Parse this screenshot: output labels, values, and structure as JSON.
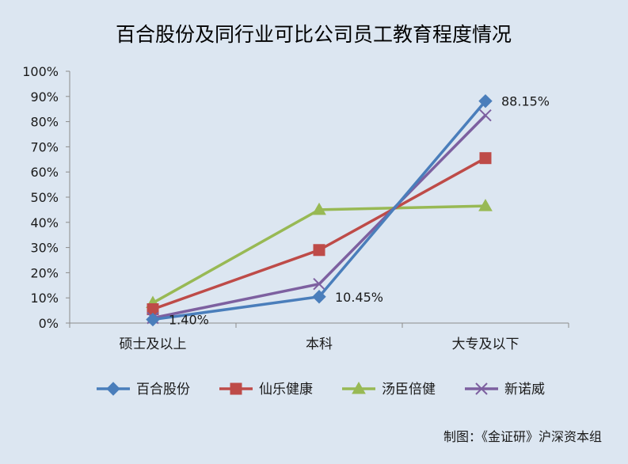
{
  "chart_data": {
    "type": "line",
    "title": "百合股份及同行业可比公司员工教育程度情况",
    "categories": [
      "硕士及以上",
      "本科",
      "大专及以下"
    ],
    "ylim": [
      0,
      100
    ],
    "y_ticks": [
      "0%",
      "10%",
      "20%",
      "30%",
      "40%",
      "50%",
      "60%",
      "70%",
      "80%",
      "90%",
      "100%"
    ],
    "grid": false,
    "legend_position": "bottom",
    "series": [
      {
        "name": "百合股份",
        "values": [
          1.4,
          10.45,
          88.15
        ],
        "color": "#4a7ebb",
        "marker": "diamond"
      },
      {
        "name": "仙乐健康",
        "values": [
          5.5,
          29,
          65.5
        ],
        "color": "#be4b48",
        "marker": "square"
      },
      {
        "name": "汤臣倍健",
        "values": [
          8,
          45,
          46.5
        ],
        "color": "#98b954",
        "marker": "triangle"
      },
      {
        "name": "新诺威",
        "values": [
          2,
          15.5,
          82.5
        ],
        "color": "#7d60a0",
        "marker": "x"
      }
    ],
    "data_labels": [
      {
        "series": 0,
        "point": 0,
        "text": "1.40%"
      },
      {
        "series": 0,
        "point": 1,
        "text": "10.45%"
      },
      {
        "series": 0,
        "point": 2,
        "text": "88.15%"
      }
    ],
    "source": "制图：《金证研》沪深资本组"
  }
}
